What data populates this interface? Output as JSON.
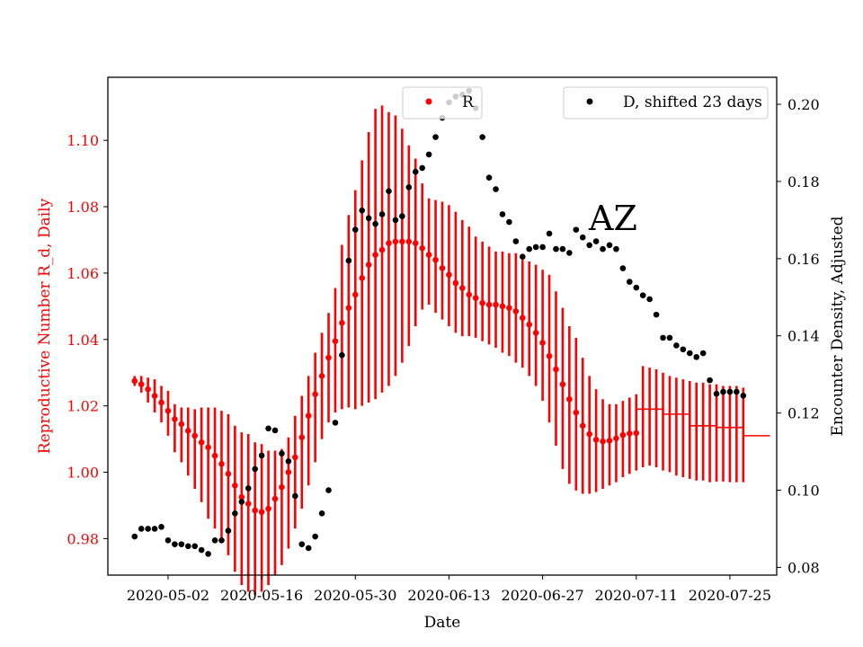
{
  "colors": {
    "r_series": "#ff0000",
    "d_series": "#000000",
    "axes": "#000000",
    "background": "#ffffff"
  },
  "chart_data": {
    "type": "scatter",
    "title": "",
    "annotation": "AZ",
    "xlabel": "Date",
    "ylabel_left": "Reproductive Number R_d, Daily",
    "ylabel_right": "Encounter Density, Adjusted",
    "xlim": [
      "2020-04-23",
      "2020-08-01"
    ],
    "ylim_left": [
      0.969,
      1.119
    ],
    "ylim_right": [
      0.078,
      0.207
    ],
    "x_ticks": [
      "2020-05-02",
      "2020-05-16",
      "2020-05-30",
      "2020-06-13",
      "2020-06-27",
      "2020-07-11",
      "2020-07-25"
    ],
    "y_ticks_left": [
      "0.98",
      "1.00",
      "1.02",
      "1.04",
      "1.06",
      "1.08",
      "1.10"
    ],
    "y_ticks_right": [
      "0.08",
      "0.10",
      "0.12",
      "0.14",
      "0.16",
      "0.18",
      "0.20"
    ],
    "grid": false,
    "legend_left": {
      "label": "R",
      "placement": "top-center"
    },
    "legend_right": {
      "label": "D, shifted 23 days",
      "placement": "top-right"
    },
    "series": [
      {
        "name": "R",
        "axis": "left",
        "x_start": "2020-04-27",
        "y": [
          1.0275,
          1.0265,
          1.025,
          1.023,
          1.021,
          1.0185,
          1.016,
          1.0145,
          1.0125,
          1.011,
          1.009,
          1.0075,
          1.005,
          1.0025,
          0.9995,
          0.996,
          0.9925,
          0.9905,
          0.9885,
          0.988,
          0.989,
          0.992,
          0.9955,
          1.0,
          1.0045,
          1.0105,
          1.017,
          1.0235,
          1.029,
          1.0345,
          1.0395,
          1.045,
          1.0495,
          1.0535,
          1.0585,
          1.0625,
          1.0655,
          1.067,
          1.069,
          1.0695,
          1.0695,
          1.0695,
          1.069,
          1.0675,
          1.0655,
          1.064,
          1.0615,
          1.0595,
          1.057,
          1.0555,
          1.0535,
          1.0525,
          1.051,
          1.0505,
          1.0505,
          1.05,
          1.0495,
          1.0485,
          1.0465,
          1.0445,
          1.042,
          1.039,
          1.035,
          1.031,
          1.0265,
          1.022,
          1.018,
          1.014,
          1.0115,
          1.0098,
          1.0093,
          1.0095,
          1.0102,
          1.0112,
          1.0117,
          1.0118,
          null,
          null,
          null,
          null,
          null,
          null,
          null,
          null,
          null,
          null,
          null,
          null,
          null,
          null,
          null,
          null
        ],
        "err_low": [
          1.026,
          1.024,
          1.021,
          1.018,
          1.015,
          1.011,
          1.006,
          1.003,
          0.999,
          0.995,
          0.991,
          0.986,
          0.983,
          0.979,
          0.975,
          0.97,
          0.966,
          0.964,
          0.963,
          0.964,
          0.966,
          0.969,
          0.972,
          0.977,
          0.983,
          0.989,
          0.996,
          1.003,
          1.01,
          1.015,
          1.018,
          1.019,
          1.0195,
          1.019,
          1.02,
          1.021,
          1.022,
          1.024,
          1.026,
          1.029,
          1.033,
          1.038,
          1.044,
          1.049,
          1.0505,
          1.048,
          1.046,
          1.044,
          1.042,
          1.041,
          1.041,
          1.0405,
          1.0395,
          1.0385,
          1.0375,
          1.036,
          1.035,
          1.033,
          1.0315,
          1.029,
          1.026,
          1.0215,
          1.015,
          1.008,
          1.001,
          0.9965,
          0.9945,
          0.9935,
          0.9935,
          0.994,
          0.995,
          0.996,
          0.997,
          0.9985,
          0.9995,
          1.0005,
          1.0015,
          1.002,
          1.0015,
          1.0005,
          1.0,
          0.999,
          0.9985,
          0.998,
          0.9975,
          0.9975,
          0.997,
          0.9972,
          0.9972,
          0.997,
          0.997,
          0.997
        ],
        "err_high": [
          1.029,
          1.029,
          1.0285,
          1.028,
          1.026,
          1.0245,
          1.0205,
          1.0195,
          1.0195,
          1.019,
          1.0195,
          1.0195,
          1.0195,
          1.0185,
          1.0175,
          1.014,
          1.012,
          1.0115,
          1.009,
          1.0085,
          1.0065,
          1.0065,
          1.007,
          1.0105,
          1.017,
          1.023,
          1.029,
          1.036,
          1.042,
          1.048,
          1.0555,
          1.0685,
          1.0775,
          1.085,
          1.094,
          1.1025,
          1.1095,
          1.1105,
          1.1085,
          1.1075,
          1.1035,
          1.0985,
          1.0945,
          1.087,
          1.0825,
          1.082,
          1.0815,
          1.0805,
          1.0785,
          1.076,
          1.074,
          1.071,
          1.0695,
          1.068,
          1.0665,
          1.0665,
          1.066,
          1.066,
          1.064,
          1.0635,
          1.0625,
          1.061,
          1.0595,
          1.0545,
          1.0495,
          1.044,
          1.0405,
          1.0345,
          1.029,
          1.025,
          1.022,
          1.0205,
          1.0205,
          1.0215,
          1.0225,
          1.0235,
          1.032,
          1.0315,
          1.031,
          1.03,
          1.029,
          1.0285,
          1.028,
          1.0275,
          1.027,
          1.027,
          1.0265,
          1.0265,
          1.026,
          1.026,
          1.026,
          1.0255
        ],
        "extension_segments": [
          {
            "x": [
              "2020-07-11",
              "2020-07-15"
            ],
            "y": 1.019
          },
          {
            "x": [
              "2020-07-15",
              "2020-07-19"
            ],
            "y": 1.0175
          },
          {
            "x": [
              "2020-07-19",
              "2020-07-23"
            ],
            "y": 1.014
          },
          {
            "x": [
              "2020-07-23",
              "2020-07-27"
            ],
            "y": 1.0135
          },
          {
            "x": [
              "2020-07-27",
              "2020-07-31"
            ],
            "y": 1.011
          }
        ]
      },
      {
        "name": "D, shifted 23 days",
        "axis": "right",
        "x_start": "2020-04-27",
        "y": [
          0.088,
          0.09,
          0.09,
          0.09,
          0.0905,
          0.087,
          0.086,
          0.086,
          0.0855,
          0.0855,
          0.0845,
          0.0835,
          0.087,
          0.087,
          0.0895,
          0.094,
          0.097,
          0.1005,
          0.1055,
          0.109,
          0.116,
          0.1155,
          0.1095,
          0.1075,
          0.0985,
          0.086,
          0.085,
          0.088,
          0.094,
          0.1,
          0.1175,
          0.135,
          0.1595,
          0.1675,
          0.1725,
          0.1705,
          0.169,
          0.1715,
          0.1775,
          0.17,
          0.171,
          0.1785,
          0.1825,
          0.1835,
          0.187,
          0.1915,
          0.1965,
          0.2005,
          0.202,
          0.2025,
          0.2035,
          0.199,
          0.1915,
          0.181,
          0.178,
          0.1715,
          0.1695,
          0.1645,
          0.1605,
          0.1625,
          0.163,
          0.163,
          0.1665,
          0.1625,
          0.1625,
          0.1615,
          0.1675,
          0.1655,
          0.1635,
          0.1645,
          0.1625,
          0.1635,
          0.1625,
          0.1575,
          0.154,
          0.1525,
          0.1505,
          0.1495,
          0.1455,
          0.1395,
          0.1395,
          0.1375,
          0.1365,
          0.1355,
          0.1345,
          0.1355,
          0.1285,
          0.125,
          0.1255,
          0.1255,
          0.1255,
          0.1245
        ]
      }
    ]
  }
}
